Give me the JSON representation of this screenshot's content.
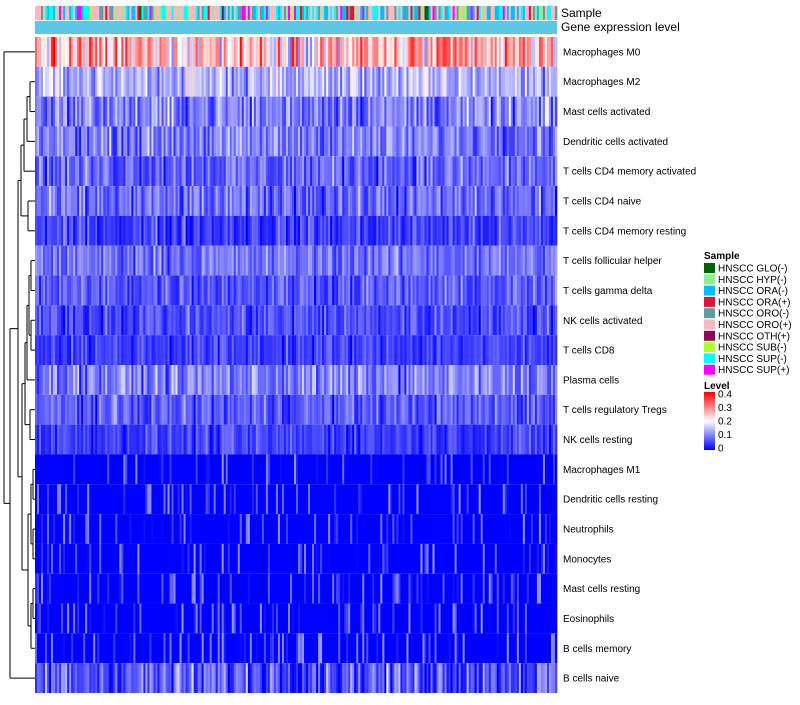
{
  "chart_data": {
    "type": "heatmap",
    "title": "",
    "annotation_labels": {
      "sample": "Sample",
      "gene_level": "Gene expression level"
    },
    "rows": [
      {
        "name": "Macrophages M0",
        "mean": 0.25,
        "spread": 0.12
      },
      {
        "name": "Macrophages M2",
        "mean": 0.14,
        "spread": 0.07
      },
      {
        "name": "Mast cells activated",
        "mean": 0.1,
        "spread": 0.07
      },
      {
        "name": "Dendritic cells activated",
        "mean": 0.1,
        "spread": 0.06
      },
      {
        "name": "T cells CD4 memory activated",
        "mean": 0.08,
        "spread": 0.06
      },
      {
        "name": "T cells CD4 naive",
        "mean": 0.08,
        "spread": 0.06
      },
      {
        "name": "T cells CD4 memory resting",
        "mean": 0.05,
        "spread": 0.05
      },
      {
        "name": "T cells follicular helper",
        "mean": 0.09,
        "spread": 0.05
      },
      {
        "name": "T cells gamma delta",
        "mean": 0.07,
        "spread": 0.05
      },
      {
        "name": "NK cells activated",
        "mean": 0.06,
        "spread": 0.05
      },
      {
        "name": "T cells CD8",
        "mean": 0.05,
        "spread": 0.04
      },
      {
        "name": "Plasma cells",
        "mean": 0.1,
        "spread": 0.06
      },
      {
        "name": "T cells regulatory  Tregs",
        "mean": 0.07,
        "spread": 0.05
      },
      {
        "name": "NK cells resting",
        "mean": 0.05,
        "spread": 0.04
      },
      {
        "name": "Macrophages M1",
        "mean": 0.01,
        "spread": 0.03
      },
      {
        "name": "Dendritic cells resting",
        "mean": 0.01,
        "spread": 0.03
      },
      {
        "name": "Neutrophils",
        "mean": 0.01,
        "spread": 0.03
      },
      {
        "name": "Monocytes",
        "mean": 0.01,
        "spread": 0.03
      },
      {
        "name": "Mast cells resting",
        "mean": 0.01,
        "spread": 0.03
      },
      {
        "name": "Eosinophils",
        "mean": 0.01,
        "spread": 0.02
      },
      {
        "name": "B cells memory",
        "mean": 0.01,
        "spread": 0.02
      },
      {
        "name": "B cells naive",
        "mean": 0.07,
        "spread": 0.08
      }
    ],
    "n_samples": 260,
    "sample_legend": {
      "title": "Sample",
      "items": [
        {
          "label": "HNSCC GLO(-)",
          "color": "#006400"
        },
        {
          "label": "HNSCC HYP(-)",
          "color": "#90ee90"
        },
        {
          "label": "HNSCC ORA(-)",
          "color": "#00bfff"
        },
        {
          "label": "HNSCC ORA(+)",
          "color": "#dc143c"
        },
        {
          "label": "HNSCC ORO(-)",
          "color": "#5f9ea0"
        },
        {
          "label": "HNSCC ORO(+)",
          "color": "#ffb6c1"
        },
        {
          "label": "HNSCC OTH(+)",
          "color": "#8b0a50"
        },
        {
          "label": "HNSCC SUB(-)",
          "color": "#adff2f"
        },
        {
          "label": "HNSCC SUP(-)",
          "color": "#00ffff"
        },
        {
          "label": "HNSCC SUP(+)",
          "color": "#ff00ff"
        }
      ]
    },
    "sample_weights": [
      0.02,
      0.06,
      0.14,
      0.04,
      0.14,
      0.3,
      0.01,
      0.02,
      0.22,
      0.05
    ],
    "level_legend": {
      "title": "Level",
      "range": [
        0,
        0.4
      ],
      "ticks": [
        {
          "value": 0.4,
          "label": "0.4"
        },
        {
          "value": 0.3,
          "label": "0.3"
        },
        {
          "value": 0.2,
          "label": "0.2"
        },
        {
          "value": 0.1,
          "label": "0.1"
        },
        {
          "value": 0,
          "label": "0"
        }
      ]
    },
    "colors": {
      "low": "#0000ff",
      "mid": "#ffffff",
      "high": "#ff0000",
      "gene_bar": "#5bc8e8",
      "dendrogram": "#000000"
    }
  }
}
